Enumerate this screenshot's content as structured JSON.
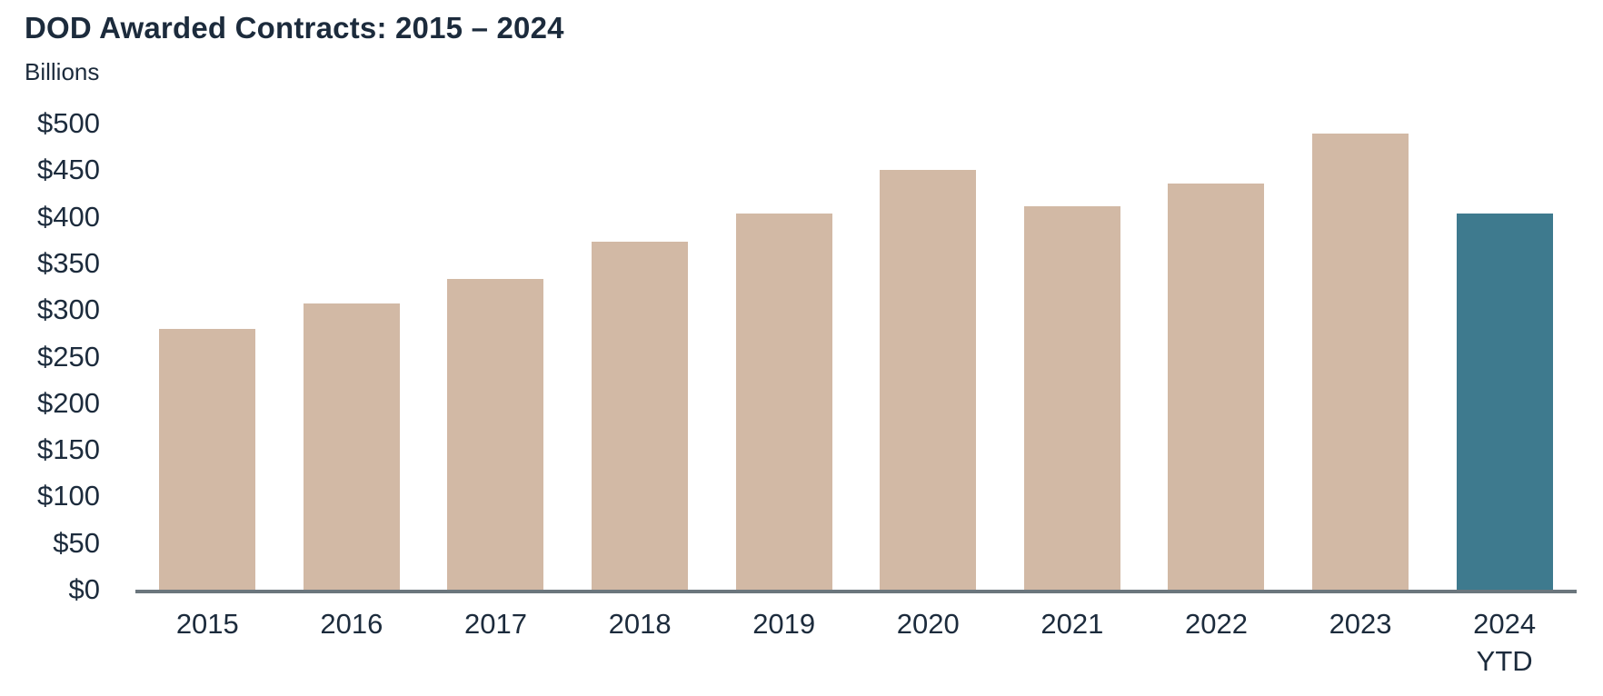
{
  "title": "DOD Awarded Contracts: 2015 – 2024",
  "colors": {
    "background": "#FFFFFF",
    "bar_default": "#D2B9A5",
    "bar_highlight": "#3E7A8E",
    "text": "#1C2B3C",
    "axis_line": "#6B767D"
  },
  "chart_data": {
    "type": "bar",
    "title": "DOD Awarded Contracts: 2015 – 2024",
    "ylabel": "Billions",
    "xlabel": "",
    "categories": [
      "2015",
      "2016",
      "2017",
      "2018",
      "2019",
      "2020",
      "2021",
      "2022",
      "2023",
      "2024\nYTD"
    ],
    "values": [
      280,
      307,
      333,
      373,
      404,
      450,
      411,
      436,
      489,
      404
    ],
    "highlight_index": 9,
    "ylim": [
      0,
      500
    ],
    "ytick_step": 50,
    "ytick_labels": [
      "$0",
      "$50",
      "$100",
      "$150",
      "$200",
      "$250",
      "$300",
      "$350",
      "$400",
      "$450",
      "$500"
    ],
    "grid": false,
    "legend_position": "none"
  }
}
